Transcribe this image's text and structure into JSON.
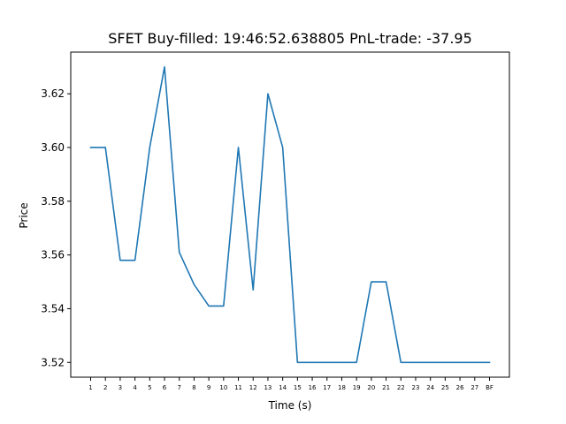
{
  "chart_data": {
    "type": "line",
    "title": "SFET  Buy-filled:  19:46:52.638805  PnL-trade:  -37.95",
    "xlabel": "Time (s)",
    "ylabel": "Price",
    "categories": [
      "1",
      "2",
      "3",
      "4",
      "5",
      "6",
      "7",
      "8",
      "9",
      "10",
      "11",
      "12",
      "13",
      "14",
      "15",
      "16",
      "17",
      "18",
      "19",
      "20",
      "21",
      "22",
      "23",
      "24",
      "25",
      "26",
      "27",
      "BF"
    ],
    "series": [
      {
        "color": "#1f77b4",
        "values": [
          3.6,
          3.6,
          3.558,
          3.558,
          3.6,
          3.63,
          3.561,
          3.549,
          3.541,
          3.541,
          3.6,
          3.547,
          3.62,
          3.6,
          3.52,
          3.52,
          3.52,
          3.52,
          3.52,
          3.55,
          3.55,
          3.52,
          3.52,
          3.52,
          3.52,
          3.52,
          3.52,
          3.52
        ]
      }
    ],
    "yticks": [
      "3.52",
      "3.54",
      "3.56",
      "3.58",
      "3.60",
      "3.62"
    ],
    "ylim": [
      3.5145,
      3.6355
    ],
    "grid": false
  }
}
